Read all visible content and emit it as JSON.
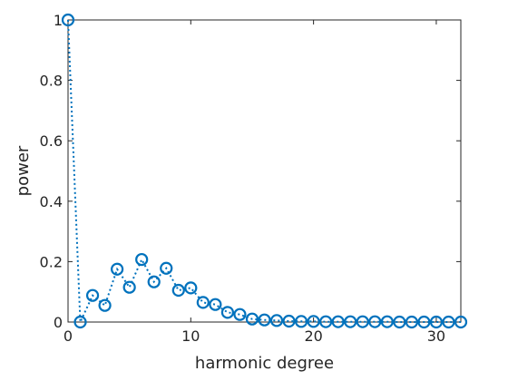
{
  "chart_data": {
    "type": "line",
    "xlabel": "harmonic degree",
    "ylabel": "power",
    "xlim": [
      0,
      32
    ],
    "ylim": [
      0,
      1
    ],
    "xticks": [
      0,
      10,
      20,
      30
    ],
    "yticks": [
      0,
      0.2,
      0.4,
      0.6,
      0.8,
      1
    ],
    "ytick_labels": [
      "0",
      "0.2",
      "0.4",
      "0.6",
      "0.8",
      "1"
    ],
    "grid": false,
    "series": [
      {
        "color": "#0072BD",
        "line_style": "dotted",
        "marker": "circle",
        "x": [
          0,
          1,
          2,
          3,
          4,
          5,
          6,
          7,
          8,
          9,
          10,
          11,
          12,
          13,
          14,
          15,
          16,
          17,
          18,
          19,
          20,
          21,
          22,
          23,
          24,
          25,
          26,
          27,
          28,
          29,
          30,
          31,
          32
        ],
        "values": [
          1.0,
          0.0,
          0.088,
          0.055,
          0.175,
          0.115,
          0.207,
          0.133,
          0.178,
          0.105,
          0.113,
          0.065,
          0.058,
          0.032,
          0.025,
          0.01,
          0.007,
          0.005,
          0.003,
          0.002,
          0.002,
          0.001,
          0.001,
          0.001,
          0.001,
          0.001,
          0.001,
          0.0,
          0.0,
          0.0,
          0.0,
          0.0,
          0.0
        ]
      }
    ]
  }
}
